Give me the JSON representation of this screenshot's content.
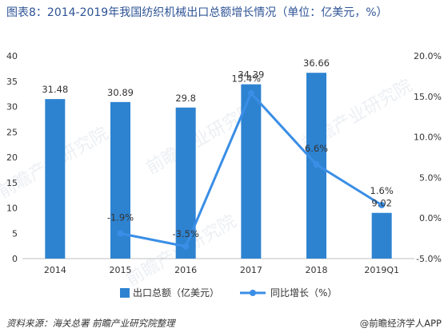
{
  "title": "图表8：2014-2019年我国纺织机械出口总额增长情况（单位：亿美元，%）",
  "source": "资料来源：海关总署 前瞻产业研究院整理",
  "brand": "@前瞻经济学人APP",
  "watermark": "前瞻产业研究院",
  "colors": {
    "bar": "#2e83d1",
    "line": "#3a8ee6",
    "title": "#2f5496",
    "axis": "#333333"
  },
  "chart_data": {
    "type": "bar",
    "categories": [
      "2014",
      "2015",
      "2016",
      "2017",
      "2018",
      "2019Q1"
    ],
    "series": [
      {
        "name": "出口总额（亿美元）",
        "type": "bar",
        "axis": "left",
        "values": [
          31.48,
          30.89,
          29.8,
          34.39,
          36.66,
          9.02
        ],
        "labels": [
          "31.48",
          "30.89",
          "29.8",
          "34.39",
          "36.66",
          "9.02"
        ]
      },
      {
        "name": "同比增长（%）",
        "type": "line",
        "axis": "right",
        "values": [
          null,
          -1.9,
          -3.5,
          15.4,
          6.6,
          1.6
        ],
        "labels": [
          "",
          "-1.9%",
          "-3.5%",
          "15.4%",
          "6.6%",
          "1.6%"
        ]
      }
    ],
    "y_left": {
      "range": [
        0,
        40
      ],
      "ticks": [
        "0",
        "5",
        "10",
        "15",
        "20",
        "25",
        "30",
        "35",
        "40"
      ]
    },
    "y_right": {
      "range": [
        -5,
        20
      ],
      "ticks": [
        "-5.0%",
        "0.0%",
        "5.0%",
        "10.0%",
        "15.0%",
        "20.0%"
      ]
    },
    "legend_position": "bottom",
    "grid": false
  }
}
